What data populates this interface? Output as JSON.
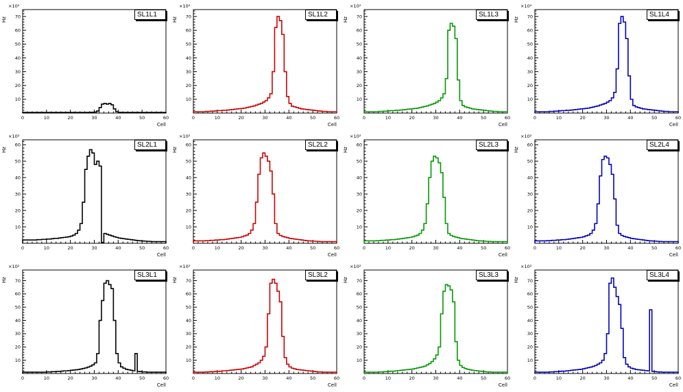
{
  "page": {
    "background": "#ffffff"
  },
  "chart_common": {
    "type": "histogram-step",
    "xlabel": "Cell",
    "ylabel": "Hz",
    "multiplier": "×10²",
    "xlim": [
      0,
      60
    ],
    "xtick_step": 10,
    "xtick_minor": 2,
    "ytick_step": 10,
    "ytick_minor": 2,
    "grid": false,
    "legend_position": "top-right",
    "frame_color": "#000000"
  },
  "chart_data": [
    {
      "title": "SL1L1",
      "color": "#000000",
      "ylim": [
        0,
        75
      ],
      "bins": [
        0.5,
        0.5,
        0.5,
        0.5,
        0.5,
        0.5,
        0.5,
        0.5,
        0.5,
        0.5,
        0.5,
        0.5,
        0.5,
        0.5,
        0.5,
        0.5,
        0.5,
        0.5,
        0.5,
        0.5,
        0.5,
        0.5,
        0.5,
        0.5,
        0.5,
        0.5,
        0.5,
        0.5,
        0.6,
        0.6,
        0.8,
        1.5,
        4,
        6.5,
        7,
        6.5,
        7,
        6,
        3,
        1,
        0.6,
        0.5,
        0.5,
        0.5,
        0.5,
        0.5,
        0.5,
        0.5,
        0.5,
        0.5,
        0.5,
        0.5,
        0.5,
        0.5,
        0.5,
        0.5,
        0.5,
        0.5,
        0.5,
        0.5
      ]
    },
    {
      "title": "SL1L2",
      "color": "#cc0000",
      "ylim": [
        0,
        75
      ],
      "bins": [
        1,
        1,
        1,
        1,
        1,
        1.2,
        1.2,
        1.4,
        1.4,
        1.6,
        1.8,
        1.8,
        2,
        2,
        2.2,
        2.4,
        2.6,
        2.8,
        3,
        3.2,
        3.4,
        3.6,
        4,
        4.4,
        4.8,
        5.2,
        5.8,
        6.4,
        7,
        8,
        9,
        11,
        14,
        30,
        62,
        70,
        67,
        57,
        30,
        12,
        7,
        5,
        4.5,
        4,
        3.5,
        3,
        2.8,
        2.6,
        2.4,
        2.2,
        2,
        1.8,
        1.6,
        1.4,
        1.2,
        1.2,
        1,
        1,
        1,
        1
      ]
    },
    {
      "title": "SL1L3",
      "color": "#009900",
      "ylim": [
        0,
        75
      ],
      "bins": [
        1,
        1,
        1,
        1,
        1,
        1,
        1.2,
        1.2,
        1.4,
        1.4,
        1.6,
        1.8,
        1.8,
        2,
        2,
        2.2,
        2.4,
        2.6,
        2.8,
        3,
        3.2,
        3.4,
        3.6,
        4,
        4.4,
        4.8,
        5.2,
        5.8,
        6.4,
        7,
        8,
        9,
        11,
        14,
        25,
        60,
        65,
        63,
        54,
        24,
        9,
        5.5,
        4.5,
        4,
        3.5,
        3,
        2.8,
        2.6,
        2.4,
        2.2,
        2,
        1.8,
        1.6,
        1.4,
        1.2,
        1.2,
        1,
        1,
        1,
        1
      ]
    },
    {
      "title": "SL1L4",
      "color": "#0000bb",
      "ylim": [
        0,
        75
      ],
      "bins": [
        1,
        1,
        1,
        1,
        1,
        1,
        1.2,
        1.2,
        1.4,
        1.4,
        1.6,
        1.8,
        1.8,
        2,
        2,
        2.2,
        2.4,
        2.6,
        2.8,
        3,
        3.2,
        3.4,
        3.6,
        4,
        4.4,
        4.8,
        5.2,
        5.8,
        6.4,
        7,
        8,
        9,
        11,
        15,
        32,
        65,
        70,
        66,
        54,
        27,
        10,
        5.5,
        4.5,
        4,
        3.5,
        3,
        2.8,
        2.6,
        2.4,
        2.2,
        2,
        1.8,
        1.6,
        1.4,
        1.2,
        1.2,
        1,
        1,
        1,
        1
      ]
    },
    {
      "title": "SL2L1",
      "color": "#000000",
      "ylim": [
        0,
        63
      ],
      "bins": [
        2,
        2,
        2,
        2,
        2,
        2,
        2.2,
        2.2,
        2.4,
        2.4,
        2.6,
        2.6,
        2.8,
        3,
        3,
        3.2,
        3.4,
        3.6,
        3.8,
        4,
        4.4,
        5,
        6,
        8,
        12,
        25,
        45,
        53,
        57,
        55,
        48,
        50,
        47,
        0.5,
        6,
        5.5,
        5,
        4.5,
        4,
        3.6,
        3.2,
        3,
        2.8,
        2.6,
        2.4,
        2.2,
        2,
        1.8,
        1.6,
        1.5,
        1.4,
        1.3,
        1.2,
        1.1,
        1,
        1,
        1,
        1,
        1,
        1
      ]
    },
    {
      "title": "SL2L2",
      "color": "#cc0000",
      "ylim": [
        0,
        63
      ],
      "bins": [
        1.5,
        1.5,
        1.5,
        1.5,
        1.5,
        1.6,
        1.6,
        1.8,
        1.8,
        2,
        2,
        2.2,
        2.2,
        2.4,
        2.6,
        2.8,
        3,
        3.2,
        3.4,
        3.6,
        4,
        4.5,
        5,
        6,
        8,
        12,
        25,
        42,
        52,
        55,
        53,
        50,
        44,
        30,
        12,
        6,
        4.8,
        4.2,
        3.8,
        3.4,
        3,
        2.8,
        2.6,
        2.4,
        2.2,
        2,
        1.8,
        1.6,
        1.5,
        1.4,
        1.3,
        1.2,
        1.1,
        1,
        1,
        1,
        1,
        1,
        1,
        1
      ]
    },
    {
      "title": "SL2L3",
      "color": "#009900",
      "ylim": [
        0,
        63
      ],
      "bins": [
        1.5,
        1.5,
        1.5,
        1.5,
        1.5,
        1.6,
        1.6,
        1.8,
        1.8,
        2,
        2,
        2.2,
        2.2,
        2.4,
        2.6,
        2.8,
        3,
        3.2,
        3.4,
        3.6,
        4,
        4.5,
        5,
        6,
        8,
        12,
        24,
        40,
        50,
        53,
        52,
        49,
        43,
        28,
        12,
        6,
        4.8,
        4.2,
        3.8,
        3.4,
        3,
        2.8,
        2.6,
        2.4,
        2.2,
        2,
        1.8,
        1.6,
        1.5,
        1.4,
        1.3,
        1.2,
        1.1,
        1,
        1,
        1,
        1,
        1,
        1,
        1
      ]
    },
    {
      "title": "SL2L4",
      "color": "#0000bb",
      "ylim": [
        0,
        63
      ],
      "bins": [
        1.5,
        1.5,
        1.5,
        1.5,
        1.5,
        1.6,
        1.6,
        1.8,
        1.8,
        2,
        2,
        2.2,
        2.2,
        2.4,
        2.6,
        2.8,
        3,
        3.2,
        3.4,
        3.6,
        4,
        4.5,
        5,
        6,
        8,
        12,
        24,
        41,
        51,
        53,
        52,
        48,
        42,
        27,
        11,
        6,
        4.8,
        4.2,
        3.8,
        3.4,
        3,
        2.8,
        2.6,
        2.4,
        2.2,
        2,
        1.8,
        1.6,
        1.5,
        1.4,
        1.3,
        1.2,
        1.1,
        1,
        1,
        1,
        1,
        1,
        1,
        1
      ]
    },
    {
      "title": "SL3L1",
      "color": "#000000",
      "ylim": [
        0,
        78
      ],
      "bins": [
        1,
        1,
        1,
        1,
        1,
        1,
        1,
        1,
        1,
        1,
        1.2,
        1.2,
        1.4,
        1.4,
        1.6,
        1.6,
        1.8,
        2,
        2,
        2.2,
        2.4,
        2.6,
        2.8,
        3,
        3.4,
        3.8,
        4.2,
        4.8,
        5.5,
        6.5,
        8,
        15,
        40,
        55,
        68,
        70,
        67,
        64,
        40,
        15,
        8,
        5,
        4,
        3.2,
        2.8,
        2.4,
        2,
        15,
        1.6,
        1.4,
        1.2,
        1.2,
        1,
        1,
        1,
        1,
        1,
        1,
        1,
        1
      ]
    },
    {
      "title": "SL3L2",
      "color": "#cc0000",
      "ylim": [
        0,
        78
      ],
      "bins": [
        1,
        1,
        1,
        1,
        1,
        1.2,
        1.2,
        1.4,
        1.4,
        1.6,
        1.6,
        1.8,
        2,
        2,
        2.2,
        2.4,
        2.6,
        2.8,
        3,
        3.2,
        3.4,
        3.8,
        4.2,
        4.6,
        5,
        6,
        7,
        8,
        10,
        13,
        20,
        45,
        68,
        71,
        68,
        62,
        54,
        28,
        12,
        7,
        5,
        4,
        3.5,
        3,
        2.8,
        2.6,
        2.4,
        2.2,
        2,
        1.8,
        1.6,
        1.4,
        1.2,
        1.2,
        1,
        1,
        1,
        1,
        1,
        1
      ]
    },
    {
      "title": "SL3L3",
      "color": "#009900",
      "ylim": [
        0,
        78
      ],
      "bins": [
        1,
        1,
        1,
        1,
        1,
        1,
        1.2,
        1.2,
        1.4,
        1.4,
        1.6,
        1.8,
        1.8,
        2,
        2.2,
        2.4,
        2.6,
        2.8,
        3,
        3.2,
        3.4,
        3.8,
        4.2,
        4.6,
        5,
        5.5,
        6.5,
        7.5,
        9,
        11,
        14,
        20,
        45,
        62,
        67,
        66,
        63,
        54,
        24,
        10,
        6,
        4.5,
        3.8,
        3.2,
        2.8,
        2.4,
        2.2,
        2,
        1.8,
        1.6,
        1.4,
        1.2,
        1.2,
        1,
        1,
        1,
        1,
        1,
        1,
        1
      ]
    },
    {
      "title": "SL3L4",
      "color": "#0000bb",
      "ylim": [
        0,
        78
      ],
      "bins": [
        1,
        1,
        1,
        1,
        1,
        1,
        1.2,
        1.2,
        1.4,
        1.4,
        1.6,
        1.8,
        1.8,
        2,
        2.2,
        2.4,
        2.6,
        2.8,
        3,
        3.2,
        3.6,
        4,
        4.4,
        4.8,
        5.4,
        6,
        7,
        8,
        10,
        15,
        30,
        68,
        72,
        65,
        58,
        52,
        34,
        12,
        7,
        5,
        4,
        3.5,
        3,
        2.8,
        2.6,
        2.4,
        2.2,
        2,
        48,
        1.6,
        1.4,
        1.2,
        1.2,
        1,
        1,
        1,
        1,
        1,
        1,
        1
      ]
    }
  ]
}
